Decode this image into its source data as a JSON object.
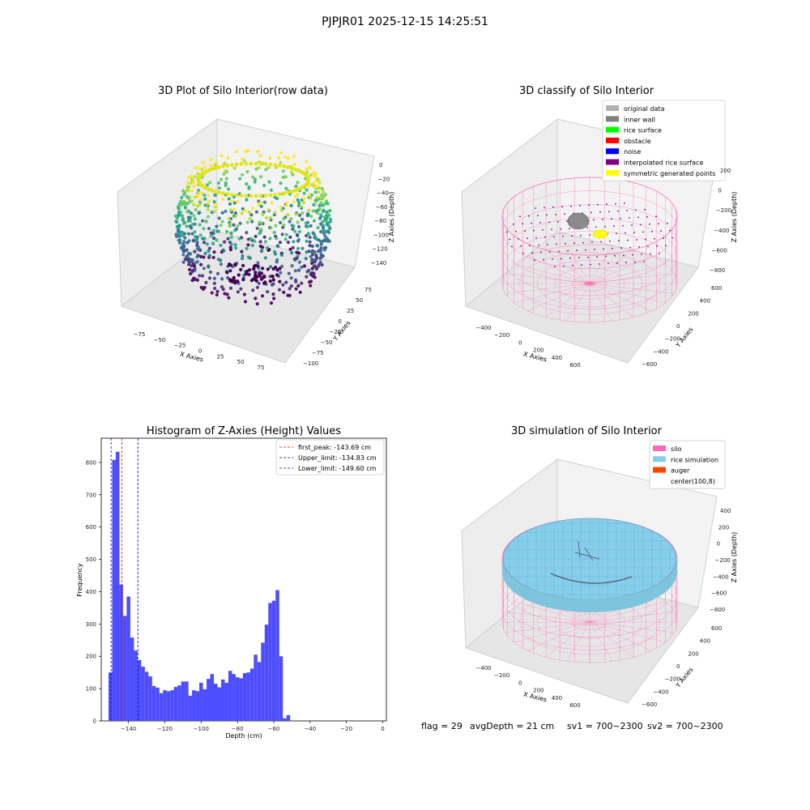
{
  "figure": {
    "suptitle": "PJPJR01 2025-12-15 14:25:51",
    "footer": {
      "flag": "flag = 29",
      "avg_depth": "avgDepth = 21 cm",
      "sv1": "sv1 = 700~2300",
      "sv2": "sv2 = 700~2300"
    }
  },
  "colors": {
    "hist_bar": "#4d4dff",
    "first_peak_line": "#ff0000",
    "limit_line": "#0000cc",
    "silo_pink": "#ff69b4",
    "rice_sim": "#87ceeb",
    "viridis_low": "#440154",
    "viridis_high": "#fde725"
  },
  "chart_data": [
    {
      "type": "scatter",
      "subtype": "3d",
      "title": "3D Plot of Silo Interior(row data)",
      "xlabel": "X Axies",
      "ylabel": "Y Axies",
      "zlabel": "Z Axies (Depth)",
      "x_ticks": [
        "−75",
        "−50",
        "−25",
        "0",
        "25",
        "50",
        "75"
      ],
      "y_ticks": [
        "−100",
        "−75",
        "−50",
        "−25",
        "0",
        "25",
        "50",
        "75"
      ],
      "z_ticks": [
        "0",
        "−20",
        "−40",
        "−60",
        "−80",
        "−100",
        "−120",
        "−140"
      ],
      "xlim": [
        -90,
        90
      ],
      "ylim": [
        -110,
        85
      ],
      "zlim": [
        -150,
        5
      ],
      "colormap": "viridis"
    },
    {
      "type": "scatter",
      "subtype": "3d",
      "title": "3D classify of Silo Interior",
      "xlabel": "X Axies",
      "ylabel": "Y Axies",
      "zlabel": "Z Axies (Depth)",
      "x_ticks": [
        "−400",
        "−200",
        "0",
        "200",
        "400",
        "600"
      ],
      "y_ticks": [
        "−600",
        "−400",
        "−200",
        "0",
        "200",
        "400",
        "600"
      ],
      "z_ticks": [
        "200",
        "0",
        "−200",
        "−400",
        "−600",
        "−800"
      ],
      "legend": [
        {
          "label": "original data",
          "color": "#b0b0b0"
        },
        {
          "label": "inner wall",
          "color": "#808080"
        },
        {
          "label": "rice surface",
          "color": "#00ff00"
        },
        {
          "label": "obstacle",
          "color": "#ff0000"
        },
        {
          "label": "noise",
          "color": "#0000ff"
        },
        {
          "label": "interpolated rice surface",
          "color": "#800080"
        },
        {
          "label": "symmetric generated points",
          "color": "#ffff00"
        }
      ],
      "legend_position": "top-right"
    },
    {
      "type": "bar",
      "subtype": "histogram",
      "title": "Histogram of Z-Axies (Height) Values",
      "xlabel": "Depth (cm)",
      "ylabel": "Frequency",
      "xlim": [
        -155,
        2
      ],
      "ylim": [
        0,
        875
      ],
      "x_ticks": [
        -140,
        -120,
        -100,
        -80,
        -60,
        -40,
        -20,
        0
      ],
      "x_tick_labels": [
        "−140",
        "−120",
        "−100",
        "−80",
        "−60",
        "−40",
        "−20",
        "0"
      ],
      "y_ticks": [
        0,
        100,
        200,
        300,
        400,
        500,
        600,
        700,
        800
      ],
      "bin_start": -151,
      "bin_width": 2,
      "values": [
        150,
        808,
        833,
        422,
        325,
        385,
        258,
        218,
        188,
        168,
        152,
        138,
        108,
        103,
        86,
        95,
        92,
        95,
        105,
        110,
        122,
        122,
        78,
        95,
        92,
        118,
        98,
        130,
        145,
        115,
        104,
        128,
        118,
        155,
        145,
        135,
        132,
        148,
        150,
        162,
        205,
        182,
        242,
        298,
        365,
        372,
        405,
        200,
        8,
        18
      ],
      "reference_lines": [
        {
          "label": "first_peak: -143.69 cm",
          "x": -143.69,
          "color": "#ff0000"
        },
        {
          "label": "Upper_limit: -134.83 cm",
          "x": -134.83,
          "color": "#0000cc"
        },
        {
          "label": "Lower_limit: -149.60 cm",
          "x": -149.6,
          "color": "#0000cc"
        }
      ],
      "legend_position": "top-right"
    },
    {
      "type": "scatter",
      "subtype": "3d-surface",
      "title": "3D simulation of Silo Interior",
      "xlabel": "X Axies",
      "ylabel": "Y Axies",
      "zlabel": "Z Axies (Depth)",
      "x_ticks": [
        "−400",
        "−200",
        "0",
        "200",
        "400",
        "600"
      ],
      "y_ticks": [
        "−600",
        "−400",
        "−200",
        "0",
        "200",
        "400",
        "600"
      ],
      "z_ticks": [
        "400",
        "200",
        "0",
        "−200",
        "−400",
        "−600",
        "−800"
      ],
      "legend": [
        {
          "label": "silo",
          "color": "#ff69b4"
        },
        {
          "label": "rice simulation",
          "color": "#87ceeb"
        },
        {
          "label": "auger",
          "color": "#ff4500"
        },
        {
          "label": "center(100,8)",
          "color": "#ffffff"
        }
      ],
      "legend_position": "top-right"
    }
  ]
}
